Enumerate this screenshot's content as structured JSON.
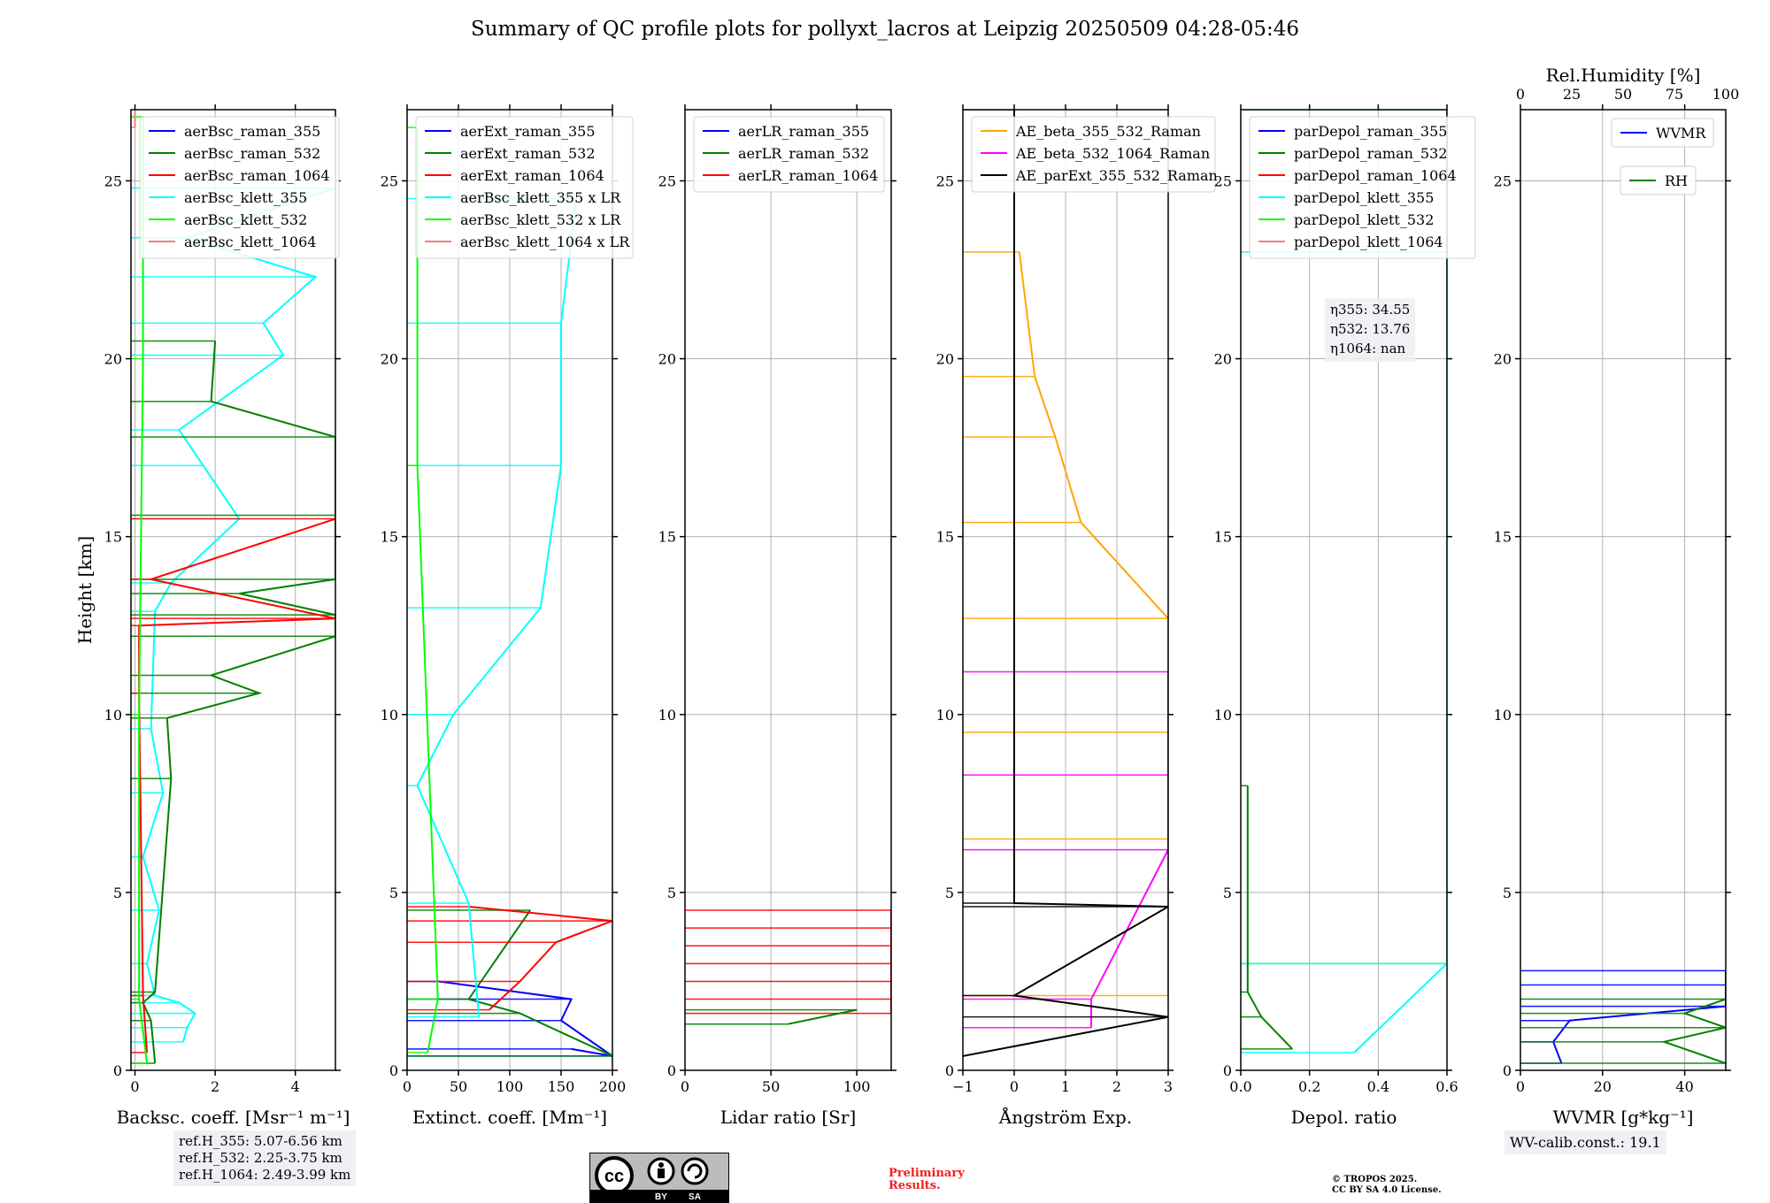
{
  "title": "Summary of QC profile plots for pollyxt_lacros at Leipzig 20250509 04:28-05:46",
  "y_axis_label": "Height [km]",
  "ref_heights": [
    "ref.H_355: 5.07-6.56 km",
    "ref.H_532: 2.25-3.75 km",
    "ref.H_1064: 2.49-3.99 km"
  ],
  "wv_calib": "WV-calib.const.: 19.1",
  "license": {
    "cc_text": "cc",
    "by": "BY",
    "sa": "SA",
    "copyright_line1": "© TROPOS 2025.",
    "copyright_line2": "CC BY SA 4.0 License."
  },
  "preliminary": "Preliminary\nResults.",
  "depol_annotation": [
    "η355: 34.55",
    "η532: 13.76",
    "η1064: nan"
  ],
  "colors": {
    "blue": "#0000ff",
    "green": "#008000",
    "red": "#ff0000",
    "cyan": "#00ffff",
    "lime": "#00ff00",
    "salmon": "#f08080",
    "orange": "#ffa500",
    "magenta": "#ff00ff",
    "black": "#000000"
  },
  "chart_data": [
    {
      "type": "line",
      "id": "backscatter",
      "xlabel": "Backsc. coeff. [Msr⁻¹ m⁻¹]",
      "xlim": [
        -0.1,
        5
      ],
      "ylim": [
        0,
        27
      ],
      "xticks": [
        0,
        2,
        4
      ],
      "yticks": [
        0,
        5,
        10,
        15,
        20,
        25
      ],
      "legend": [
        "aerBsc_raman_355",
        "aerBsc_raman_532",
        "aerBsc_raman_1064",
        "aerBsc_klett_355",
        "aerBsc_klett_532",
        "aerBsc_klett_1064"
      ],
      "legend_colors": [
        "blue",
        "green",
        "red",
        "cyan",
        "lime",
        "salmon"
      ],
      "series": [
        {
          "name": "aerBsc_klett_355",
          "color": "cyan",
          "values": [
            [
              1.2,
              0.8
            ],
            [
              1.3,
              1.2
            ],
            [
              1.5,
              1.6
            ],
            [
              1.1,
              1.9
            ],
            [
              0.5,
              2.1
            ],
            [
              0.3,
              3
            ],
            [
              0.6,
              4.5
            ],
            [
              0.2,
              6
            ],
            [
              0.7,
              7.8
            ],
            [
              0.4,
              9.6
            ],
            [
              0.5,
              12.9
            ],
            [
              0.9,
              13.7
            ],
            [
              2.6,
              15.5
            ],
            [
              1.7,
              17
            ],
            [
              1.1,
              18
            ],
            [
              3.7,
              20.1
            ],
            [
              3.2,
              21
            ],
            [
              4.5,
              22.3
            ],
            [
              1.3,
              23.4
            ],
            [
              5.0,
              24.8
            ]
          ]
        },
        {
          "name": "aerBsc_raman_532",
          "color": "green",
          "values": [
            [
              0.5,
              0.2
            ],
            [
              0.4,
              1.4
            ],
            [
              0.2,
              1.9
            ],
            [
              0.5,
              2.2
            ],
            [
              0.9,
              8.2
            ],
            [
              0.8,
              9.9
            ],
            [
              3.1,
              10.6
            ],
            [
              1.9,
              11.1
            ],
            [
              5.0,
              12.2
            ],
            [
              5.0,
              12.8
            ],
            [
              2.6,
              13.4
            ],
            [
              5.0,
              13.8
            ],
            [
              5.0,
              15.6
            ],
            [
              5.0,
              17.8
            ],
            [
              1.9,
              18.8
            ],
            [
              2.0,
              20.5
            ]
          ]
        },
        {
          "name": "aerBsc_raman_1064",
          "color": "red",
          "values": [
            [
              0.3,
              0.5
            ],
            [
              0.2,
              2.1
            ],
            [
              0.1,
              10.6
            ],
            [
              0.1,
              12.5
            ],
            [
              5.0,
              12.7
            ],
            [
              0.4,
              13.8
            ],
            [
              5.0,
              15.5
            ]
          ]
        },
        {
          "name": "aerBsc_klett_532",
          "color": "lime",
          "values": [
            [
              0.3,
              0.2
            ],
            [
              0.1,
              2.0
            ],
            [
              0.1,
              10
            ],
            [
              0.2,
              20
            ],
            [
              0.2,
              26.8
            ]
          ]
        },
        {
          "name": "aerBsc_klett_1064",
          "color": "salmon",
          "values": [
            [
              0.0,
              26.5
            ],
            [
              0.0,
              27
            ]
          ]
        }
      ]
    },
    {
      "type": "line",
      "id": "extinction",
      "xlabel": "Extinct. coeff. [Mm⁻¹]",
      "xlim": [
        0,
        200
      ],
      "ylim": [
        0,
        27
      ],
      "xticks": [
        0,
        50,
        100,
        150,
        200
      ],
      "yticks": [
        0,
        5,
        10,
        15,
        20,
        25
      ],
      "legend": [
        "aerExt_raman_355",
        "aerExt_raman_532",
        "aerExt_raman_1064",
        "aerBsc_klett_355 x LR",
        "aerBsc_klett_532 x LR",
        "aerBsc_klett_1064 x LR"
      ],
      "legend_colors": [
        "blue",
        "green",
        "red",
        "cyan",
        "lime",
        "salmon"
      ],
      "series": [
        {
          "name": "aerExt_raman_355",
          "color": "blue",
          "values": [
            [
              160,
              0.6
            ],
            [
              200,
              0.4
            ],
            [
              150,
              1.4
            ],
            [
              160,
              2.0
            ],
            [
              30,
              2.5
            ]
          ]
        },
        {
          "name": "aerExt_raman_532",
          "color": "green",
          "values": [
            [
              200,
              0.4
            ],
            [
              110,
              1.6
            ],
            [
              60,
              2.0
            ],
            [
              120,
              4.5
            ]
          ]
        },
        {
          "name": "aerExt_raman_1064",
          "color": "red",
          "values": [
            [
              80,
              1.7
            ],
            [
              110,
              2.5
            ],
            [
              145,
              3.6
            ],
            [
              200,
              4.2
            ],
            [
              60,
              4.6
            ]
          ]
        },
        {
          "name": "aerBsc_klett_355 x LR",
          "color": "cyan",
          "values": [
            [
              70,
              1.5
            ],
            [
              60,
              4.7
            ],
            [
              10,
              8
            ],
            [
              45,
              10
            ],
            [
              130,
              13
            ],
            [
              150,
              17
            ],
            [
              150,
              21
            ],
            [
              165,
              24.5
            ]
          ]
        },
        {
          "name": "aerBsc_klett_532 x LR",
          "color": "lime",
          "values": [
            [
              20,
              0.5
            ],
            [
              30,
              2
            ],
            [
              10,
              17
            ],
            [
              10,
              26.5
            ]
          ]
        }
      ]
    },
    {
      "type": "line",
      "id": "lidar_ratio",
      "xlabel": "Lidar ratio [Sr]",
      "xlim": [
        0,
        120
      ],
      "ylim": [
        0,
        27
      ],
      "xticks": [
        0,
        50,
        100
      ],
      "yticks": [
        0,
        5,
        10,
        15,
        20,
        25
      ],
      "legend": [
        "aerLR_raman_355",
        "aerLR_raman_532",
        "aerLR_raman_1064"
      ],
      "legend_colors": [
        "blue",
        "green",
        "red"
      ],
      "series": [
        {
          "name": "aerLR_raman_1064",
          "color": "red",
          "values": [
            [
              120,
              1.6
            ],
            [
              120,
              2.0
            ],
            [
              120,
              2.5
            ],
            [
              120,
              3.0
            ],
            [
              120,
              3.5
            ],
            [
              120,
              4.0
            ],
            [
              120,
              4.5
            ]
          ]
        },
        {
          "name": "aerLR_raman_532",
          "color": "green",
          "values": [
            [
              60,
              1.3
            ],
            [
              100,
              1.7
            ]
          ]
        },
        {
          "name": "aerLR_raman_355",
          "color": "blue",
          "values": []
        }
      ]
    },
    {
      "type": "line",
      "id": "angstrom",
      "xlabel": "Ångström Exp.",
      "xlim": [
        -1,
        3
      ],
      "ylim": [
        0,
        27
      ],
      "xticks": [
        -1,
        0,
        1,
        2,
        3
      ],
      "yticks": [
        0,
        5,
        10,
        15,
        20,
        25
      ],
      "legend": [
        "AE_beta_355_532_Raman",
        "AE_beta_532_1064_Raman",
        "AE_parExt_355_532_Raman"
      ],
      "legend_colors": [
        "orange",
        "magenta",
        "black"
      ],
      "series": [
        {
          "name": "AE_beta_355_532_Raman",
          "color": "orange",
          "values": [
            [
              3,
              2.1
            ],
            [
              3,
              6.5
            ],
            [
              3,
              9.5
            ],
            [
              3,
              12.7
            ],
            [
              1.3,
              15.4
            ],
            [
              0.8,
              17.8
            ],
            [
              0.4,
              19.5
            ],
            [
              0.1,
              23
            ]
          ]
        },
        {
          "name": "AE_beta_532_1064_Raman",
          "color": "magenta",
          "values": [
            [
              1.5,
              1.2
            ],
            [
              1.5,
              2.0
            ],
            [
              3,
              6.2
            ],
            [
              3,
              8.3
            ],
            [
              3,
              11.2
            ]
          ]
        },
        {
          "name": "AE_parExt_355_532_Raman",
          "color": "black",
          "values": [
            [
              -1,
              0.4
            ],
            [
              3,
              1.5
            ],
            [
              0,
              2.1
            ],
            [
              3,
              4.6
            ],
            [
              0,
              4.7
            ],
            [
              0,
              27
            ]
          ]
        }
      ]
    },
    {
      "type": "line",
      "id": "depol",
      "xlabel": "Depol. ratio",
      "xlim": [
        0,
        0.6
      ],
      "ylim": [
        0,
        27
      ],
      "xticks": [
        0.0,
        0.2,
        0.4,
        0.6
      ],
      "yticks": [
        0,
        5,
        10,
        15,
        20,
        25
      ],
      "legend": [
        "parDepol_raman_355",
        "parDepol_raman_532",
        "parDepol_raman_1064",
        "parDepol_klett_355",
        "parDepol_klett_532",
        "parDepol_klett_1064"
      ],
      "legend_colors": [
        "blue",
        "green",
        "red",
        "cyan",
        "lime",
        "salmon"
      ],
      "series": [
        {
          "name": "parDepol_klett_532",
          "color": "lime",
          "values": [
            [
              0.6,
              3.0
            ],
            [
              0.6,
              27.0
            ]
          ]
        },
        {
          "name": "parDepol_klett_355",
          "color": "cyan",
          "values": [
            [
              0.33,
              0.5
            ],
            [
              0.6,
              3.0
            ],
            [
              0.6,
              23.0
            ]
          ]
        },
        {
          "name": "parDepol_raman_532",
          "color": "green",
          "values": [
            [
              0.15,
              0.6
            ],
            [
              0.06,
              1.5
            ],
            [
              0.02,
              2.2
            ],
            [
              0.02,
              8
            ]
          ]
        }
      ]
    },
    {
      "type": "line",
      "id": "water_vapor",
      "xlabel": "WVMR [g*kg⁻¹]",
      "top_label": "Rel.Humidity [%]",
      "xlim": [
        0,
        50
      ],
      "ylim": [
        0,
        27
      ],
      "top_xlim": [
        0,
        100
      ],
      "xticks": [
        0,
        20,
        40
      ],
      "top_xticks": [
        0,
        25,
        50,
        75,
        100
      ],
      "yticks": [
        0,
        5,
        10,
        15,
        20,
        25
      ],
      "legend": [
        "WVMR",
        "RH"
      ],
      "legend_colors": [
        "blue",
        "green"
      ],
      "series": [
        {
          "name": "WVMR",
          "color": "blue",
          "values": [
            [
              10,
              0.2
            ],
            [
              8,
              0.8
            ],
            [
              12,
              1.4
            ],
            [
              50,
              1.8
            ],
            [
              50,
              2.4
            ],
            [
              50,
              2.8
            ]
          ]
        },
        {
          "name": "RH",
          "color": "green",
          "values": [
            [
              50,
              0.2
            ],
            [
              35,
              0.8
            ],
            [
              50,
              1.2
            ],
            [
              40,
              1.6
            ],
            [
              50,
              2.0
            ]
          ]
        }
      ]
    }
  ]
}
